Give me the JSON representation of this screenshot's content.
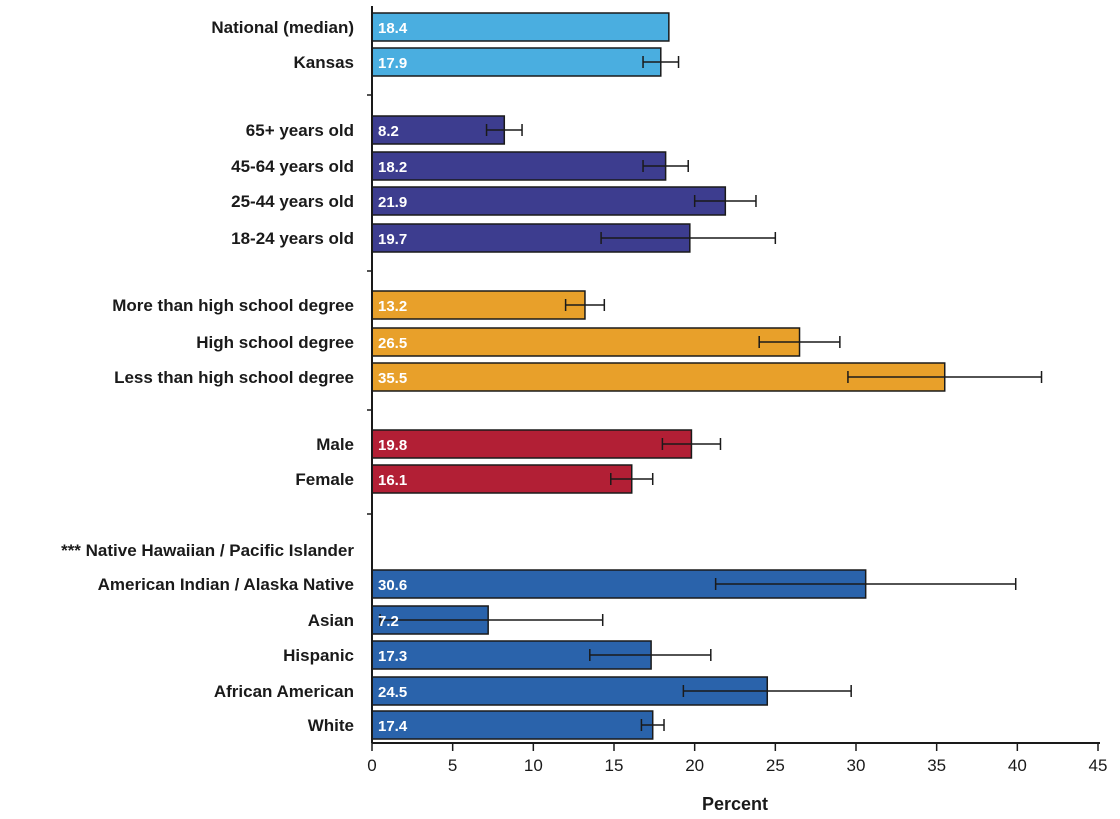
{
  "chart_data": {
    "type": "bar",
    "orientation": "horizontal",
    "xlabel": "Percent",
    "xlim": [
      0,
      45
    ],
    "x_ticks": [
      0,
      5,
      10,
      15,
      20,
      25,
      30,
      35,
      40,
      45
    ],
    "grid": false,
    "legend": "none",
    "error_bars": true,
    "rows": [
      {
        "label": "National (median)",
        "value": 18.4,
        "value_label": "18.4",
        "error": null,
        "group": "overall",
        "color": "#4aaee0"
      },
      {
        "label": "Kansas",
        "value": 17.9,
        "value_label": "17.9",
        "error": [
          16.8,
          19.0
        ],
        "group": "overall",
        "color": "#4aaee0"
      },
      {
        "label": "65+ years old",
        "value": 8.2,
        "value_label": "8.2",
        "error": [
          7.1,
          9.3
        ],
        "group": "age",
        "color": "#3d3d8f"
      },
      {
        "label": "45-64 years old",
        "value": 18.2,
        "value_label": "18.2",
        "error": [
          16.8,
          19.6
        ],
        "group": "age",
        "color": "#3d3d8f"
      },
      {
        "label": "25-44 years old",
        "value": 21.9,
        "value_label": "21.9",
        "error": [
          20.0,
          23.8
        ],
        "group": "age",
        "color": "#3d3d8f"
      },
      {
        "label": "18-24 years old",
        "value": 19.7,
        "value_label": "19.7",
        "error": [
          14.2,
          25.0
        ],
        "group": "age",
        "color": "#3d3d8f"
      },
      {
        "label": "More than high school degree",
        "value": 13.2,
        "value_label": "13.2",
        "error": [
          12.0,
          14.4
        ],
        "group": "education",
        "color": "#e8a02a"
      },
      {
        "label": "High school degree",
        "value": 26.5,
        "value_label": "26.5",
        "error": [
          24.0,
          29.0
        ],
        "group": "education",
        "color": "#e8a02a"
      },
      {
        "label": "Less than high school degree",
        "value": 35.5,
        "value_label": "35.5",
        "error": [
          29.5,
          41.5
        ],
        "group": "education",
        "color": "#e8a02a"
      },
      {
        "label": "Male",
        "value": 19.8,
        "value_label": "19.8",
        "error": [
          18.0,
          21.6
        ],
        "group": "sex",
        "color": "#b21f35"
      },
      {
        "label": "Female",
        "value": 16.1,
        "value_label": "16.1",
        "error": [
          14.8,
          17.4
        ],
        "group": "sex",
        "color": "#b21f35"
      },
      {
        "label": "*** Native Hawaiian / Pacific Islander",
        "value": null,
        "value_label": "",
        "error": null,
        "group": "race",
        "color": "#2a63ab"
      },
      {
        "label": "American Indian / Alaska Native",
        "value": 30.6,
        "value_label": "30.6",
        "error": [
          21.3,
          39.9
        ],
        "group": "race",
        "color": "#2a63ab"
      },
      {
        "label": "Asian",
        "value": 7.2,
        "value_label": "7.2",
        "error": [
          0.5,
          14.3
        ],
        "group": "race",
        "color": "#2a63ab"
      },
      {
        "label": "Hispanic",
        "value": 17.3,
        "value_label": "17.3",
        "error": [
          13.5,
          21.0
        ],
        "group": "race",
        "color": "#2a63ab"
      },
      {
        "label": "African American",
        "value": 24.5,
        "value_label": "24.5",
        "error": [
          19.3,
          29.7
        ],
        "group": "race",
        "color": "#2a63ab"
      },
      {
        "label": "White",
        "value": 17.4,
        "value_label": "17.4",
        "error": [
          16.7,
          18.1
        ],
        "group": "race",
        "color": "#2a63ab"
      }
    ]
  }
}
